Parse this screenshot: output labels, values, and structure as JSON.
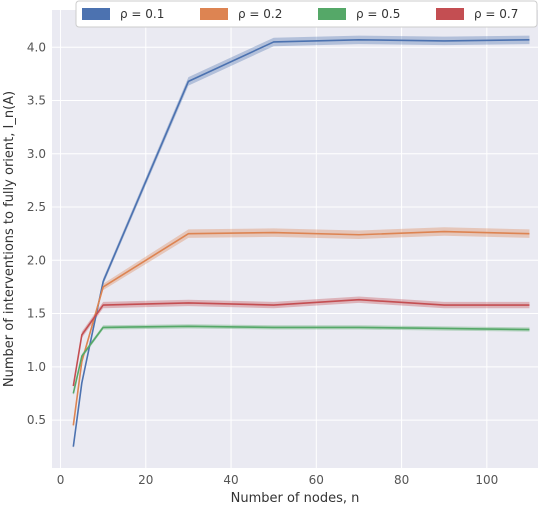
{
  "chart_data": {
    "type": "line",
    "xlabel": "Number of nodes, n",
    "ylabel": "Number of interventions to fully orient, I_n(A)",
    "xlim": [
      -2,
      112
    ],
    "ylim": [
      0.05,
      4.35
    ],
    "xticks": [
      0,
      20,
      40,
      60,
      80,
      100
    ],
    "yticks": [
      0.5,
      1.0,
      1.5,
      2.0,
      2.5,
      3.0,
      3.5,
      4.0
    ],
    "grid": true,
    "background": "#eaeaf2",
    "legend_position": "top",
    "series": [
      {
        "name": "ρ = 0.1",
        "color": "#4c72b0",
        "x": [
          3,
          5,
          10,
          30,
          50,
          70,
          90,
          110
        ],
        "y": [
          0.25,
          0.85,
          1.8,
          3.68,
          4.05,
          4.07,
          4.06,
          4.07
        ],
        "ci": [
          0.02,
          0.02,
          0.03,
          0.04,
          0.04,
          0.04,
          0.04,
          0.04
        ]
      },
      {
        "name": "ρ = 0.2",
        "color": "#dd8452",
        "x": [
          3,
          5,
          10,
          30,
          50,
          70,
          90,
          110
        ],
        "y": [
          0.45,
          1.05,
          1.75,
          2.25,
          2.26,
          2.24,
          2.27,
          2.25
        ],
        "ci": [
          0.02,
          0.02,
          0.03,
          0.04,
          0.04,
          0.04,
          0.04,
          0.04
        ]
      },
      {
        "name": "ρ = 0.5",
        "color": "#55a868",
        "x": [
          3,
          5,
          10,
          30,
          50,
          70,
          90,
          110
        ],
        "y": [
          0.75,
          1.1,
          1.37,
          1.38,
          1.37,
          1.37,
          1.36,
          1.35
        ],
        "ci": [
          0.02,
          0.02,
          0.02,
          0.02,
          0.02,
          0.02,
          0.02,
          0.02
        ]
      },
      {
        "name": "ρ = 0.7",
        "color": "#c44e52",
        "x": [
          3,
          5,
          10,
          30,
          50,
          70,
          90,
          110
        ],
        "y": [
          0.82,
          1.3,
          1.58,
          1.6,
          1.58,
          1.63,
          1.58,
          1.58
        ],
        "ci": [
          0.02,
          0.03,
          0.03,
          0.03,
          0.03,
          0.03,
          0.03,
          0.03
        ]
      }
    ]
  }
}
